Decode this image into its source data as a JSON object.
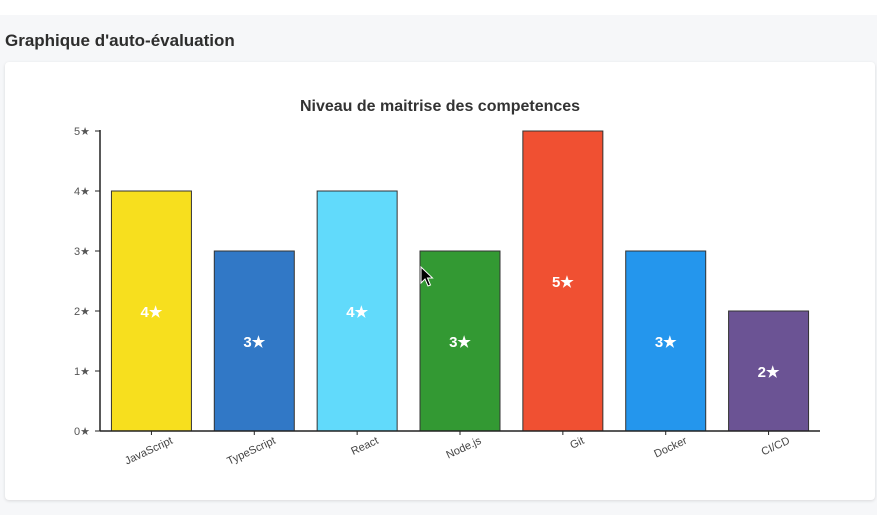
{
  "section": {
    "title": "Graphique d'auto-évaluation"
  },
  "chart_data": {
    "type": "bar",
    "title": "Niveau de maitrise des competences",
    "categories": [
      "JavaScript",
      "TypeScript",
      "React",
      "Node.js",
      "Git",
      "Docker",
      "CI/CD"
    ],
    "values": [
      4,
      3,
      4,
      3,
      5,
      3,
      2
    ],
    "colors": [
      "#f7df1e",
      "#3178c6",
      "#61dafb",
      "#339933",
      "#f05032",
      "#2496ed",
      "#6b5394"
    ],
    "value_suffix": "★",
    "yticks": [
      "0★",
      "1★",
      "2★",
      "3★",
      "4★",
      "5★"
    ],
    "ylim": [
      0,
      5
    ],
    "xlabel": "",
    "ylabel": "",
    "grid": false,
    "legend": "none"
  }
}
